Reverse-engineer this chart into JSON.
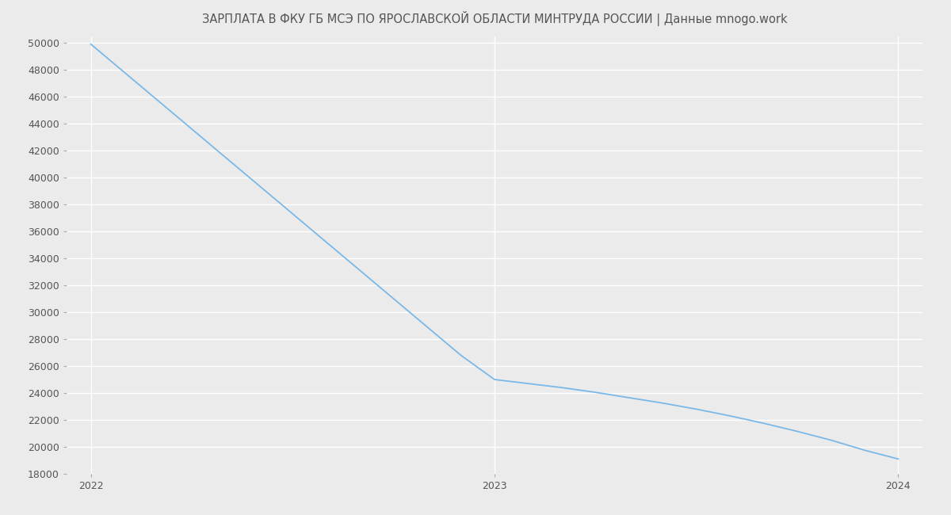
{
  "title": "ЗАРПЛАТА В ФКУ ГБ МСЭ ПО ЯРОСЛАВСКОЙ ОБЛАСТИ МИНТРУДА РОССИИ | Данные mnogo.work",
  "title_fontsize": 10.5,
  "x_values": [
    2022.0,
    2022.0833,
    2022.1667,
    2022.25,
    2022.3333,
    2022.4167,
    2022.5,
    2022.5833,
    2022.6667,
    2022.75,
    2022.8333,
    2022.9167,
    2023.0,
    2023.0833,
    2023.1667,
    2023.25,
    2023.3333,
    2023.4167,
    2023.5,
    2023.5833,
    2023.6667,
    2023.75,
    2023.8333,
    2023.9167,
    2024.0
  ],
  "y_values": [
    49900,
    47800,
    45700,
    43600,
    41500,
    39400,
    37300,
    35200,
    33100,
    31000,
    28900,
    26800,
    25000,
    24700,
    24400,
    24050,
    23650,
    23250,
    22800,
    22300,
    21750,
    21150,
    20500,
    19750,
    19100
  ],
  "line_color": "#7ab8e8",
  "line_width": 1.3,
  "ylim": [
    18000,
    50500
  ],
  "ytick_values": [
    18000,
    20000,
    22000,
    24000,
    26000,
    28000,
    30000,
    32000,
    34000,
    36000,
    38000,
    40000,
    42000,
    44000,
    46000,
    48000,
    50000
  ],
  "xtick_values": [
    2022,
    2023,
    2024
  ],
  "xlim": [
    2021.94,
    2024.06
  ],
  "bg_color": "#ebebeb",
  "plot_bg_color": "#ebebeb",
  "grid_color": "#ffffff",
  "tick_fontsize": 9,
  "title_color": "#555555"
}
